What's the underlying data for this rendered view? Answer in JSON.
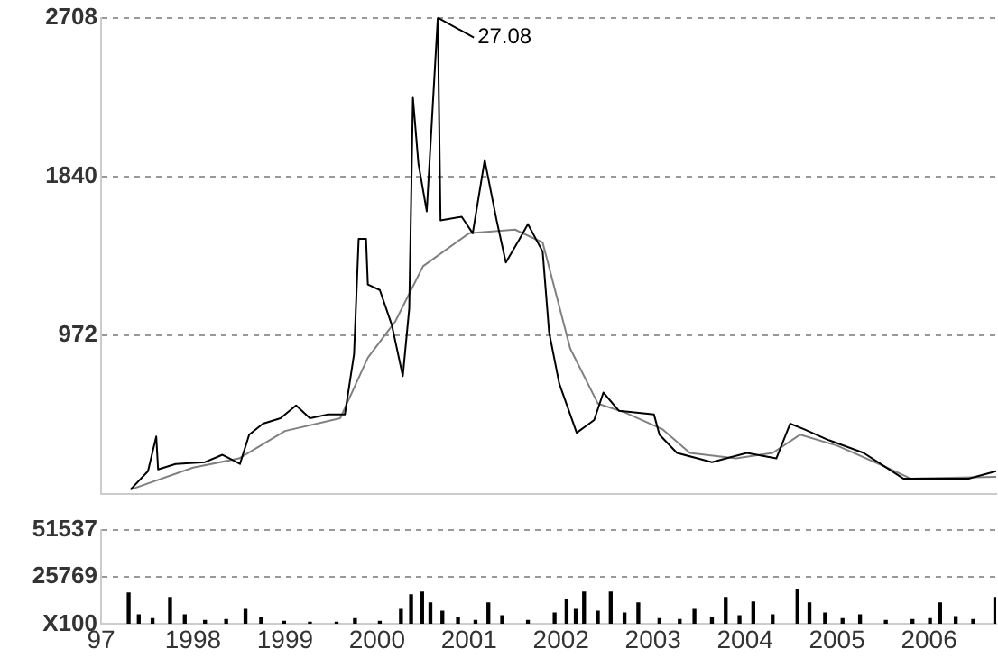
{
  "chart_data": [
    {
      "type": "line",
      "marker": "none",
      "grid": "y",
      "tick_labels": "y",
      "xlim": [
        1997,
        2006.73
      ],
      "ylim": [
        104,
        2708
      ],
      "yticks": [
        2708,
        1840,
        972
      ],
      "annotations": [
        {
          "text": "27.08",
          "x": 2000.66,
          "y": 2708
        }
      ],
      "series": [
        {
          "color": "#000000",
          "x": [
            1997.32,
            1997.51,
            1997.6,
            1997.62,
            1997.81,
            1998.13,
            1998.32,
            1998.51,
            1998.61,
            1998.76,
            1998.95,
            1999.12,
            1999.27,
            1999.46,
            1999.65,
            1999.75,
            1999.8,
            1999.88,
            1999.9,
            2000.03,
            2000.16,
            2000.28,
            2000.35,
            2000.39,
            2000.45,
            2000.54,
            2000.66,
            2000.69,
            2000.92,
            2001.04,
            2001.17,
            2001.3,
            2001.4,
            2001.55,
            2001.64,
            2001.8,
            2001.87,
            2001.98,
            2002.17,
            2002.36,
            2002.46,
            2002.63,
            2003.01,
            2003.07,
            2003.26,
            2003.64,
            2004.02,
            2004.34,
            2004.49,
            2004.64,
            2004.91,
            2005.29,
            2005.72,
            2006.05,
            2006.43,
            2006.73
          ],
          "values": [
            130,
            230,
            420,
            240,
            270,
            280,
            320,
            270,
            430,
            490,
            520,
            590,
            520,
            540,
            540,
            870,
            1500,
            1500,
            1250,
            1220,
            1030,
            750,
            1120,
            2270,
            1910,
            1650,
            2708,
            1600,
            1620,
            1530,
            1930,
            1600,
            1370,
            1500,
            1580,
            1430,
            990,
            710,
            440,
            510,
            660,
            560,
            540,
            430,
            330,
            280,
            330,
            300,
            490,
            460,
            400,
            330,
            190,
            190,
            190,
            230
          ]
        },
        {
          "color": "#808080",
          "x": [
            1997.32,
            1998.0,
            1998.5,
            1999.0,
            1999.6,
            1999.9,
            2000.2,
            2000.5,
            2001.0,
            2001.5,
            2001.8,
            2002.1,
            2002.4,
            2002.7,
            2003.1,
            2003.4,
            2003.9,
            2004.3,
            2004.6,
            2005.0,
            2005.5,
            2005.8,
            2006.73
          ],
          "values": [
            130,
            250,
            300,
            450,
            520,
            850,
            1050,
            1350,
            1530,
            1550,
            1480,
            900,
            600,
            550,
            460,
            330,
            300,
            330,
            430,
            370,
            260,
            190,
            200
          ]
        }
      ]
    },
    {
      "type": "bar",
      "grid": "y",
      "xlim": [
        1997,
        2006.73
      ],
      "ylim": [
        0,
        51537
      ],
      "xticks": [
        {
          "value": 1997,
          "label": "97"
        },
        1998,
        1999,
        2000,
        2001,
        2002,
        2003,
        2004,
        2005,
        2006
      ],
      "yticks": [
        51537,
        25769,
        {
          "value": 0,
          "label": "X100"
        }
      ],
      "series": [
        {
          "color": "#000000",
          "x": [
            1997.3,
            1997.41,
            1997.56,
            1997.75,
            1997.91,
            1998.13,
            1998.36,
            1998.57,
            1998.74,
            1998.99,
            1999.27,
            1999.56,
            1999.76,
            2000.03,
            2000.26,
            2000.37,
            2000.49,
            2000.58,
            2000.71,
            2000.88,
            2001.07,
            2001.21,
            2001.36,
            2001.64,
            2001.93,
            2002.06,
            2002.16,
            2002.25,
            2002.4,
            2002.54,
            2002.69,
            2002.84,
            2003.07,
            2003.29,
            2003.45,
            2003.64,
            2003.79,
            2003.94,
            2004.09,
            2004.3,
            2004.57,
            2004.7,
            2004.87,
            2005.06,
            2005.25,
            2005.53,
            2005.82,
            2006.01,
            2006.12,
            2006.29,
            2006.48,
            2006.73
          ],
          "values": [
            17000,
            5000,
            3000,
            14500,
            5000,
            2000,
            2500,
            8000,
            3500,
            1500,
            1000,
            1000,
            3000,
            1500,
            8000,
            16000,
            17500,
            11500,
            7000,
            3500,
            2000,
            11500,
            4500,
            2000,
            6000,
            13500,
            8000,
            17500,
            7000,
            17500,
            6000,
            11500,
            3000,
            2500,
            8000,
            3500,
            14500,
            4500,
            12000,
            5000,
            18500,
            11500,
            6000,
            3000,
            5000,
            2000,
            2500,
            3000,
            11500,
            4000,
            2500,
            14500
          ]
        }
      ]
    }
  ]
}
